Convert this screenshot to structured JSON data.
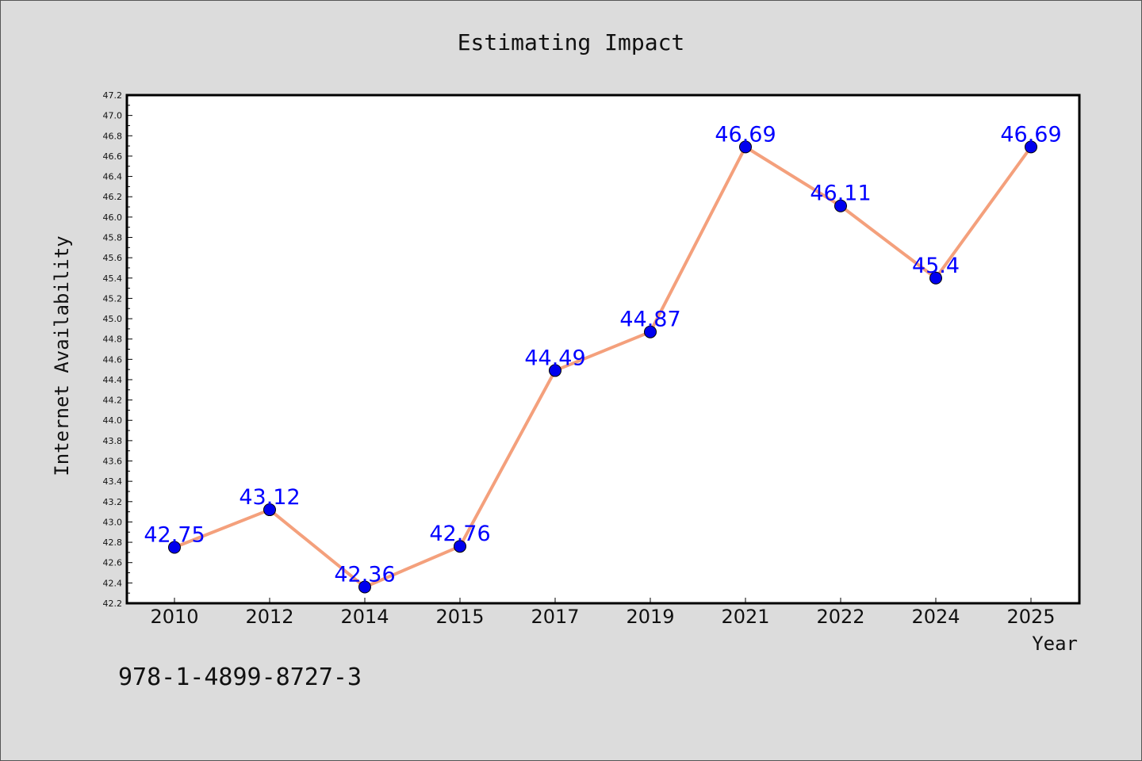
{
  "chart_data": {
    "type": "line",
    "title": "Estimating Impact",
    "xlabel": "Year",
    "ylabel": "Internet Availability",
    "categories": [
      "2010",
      "2012",
      "2014",
      "2015",
      "2017",
      "2019",
      "2021",
      "2022",
      "2024",
      "2025"
    ],
    "series": [
      {
        "values": [
          42.75,
          43.12,
          42.36,
          42.76,
          44.49,
          44.87,
          46.69,
          46.11,
          45.4,
          46.69
        ],
        "labels": [
          "42.75",
          "43.12",
          "42.36",
          "42.76",
          "44.49",
          "44.87",
          "46.69",
          "46.11",
          "45.4",
          "46.69"
        ],
        "line_color": "#f4a07c",
        "marker_color": "#0000ee",
        "label_color": "#0000ff"
      }
    ],
    "ylim": [
      42.2,
      47.2
    ],
    "yticks": [
      "42.2",
      "42.4",
      "42.6",
      "42.8",
      "43.0",
      "43.2",
      "43.4",
      "43.6",
      "43.8",
      "44.0",
      "44.2",
      "44.4",
      "44.6",
      "44.8",
      "45.0",
      "45.2",
      "45.4",
      "45.6",
      "45.8",
      "46.0",
      "46.2",
      "46.4",
      "46.6",
      "46.8",
      "47.0",
      "47.2"
    ],
    "grid": false,
    "legend": "none",
    "annotation": "978-1-4899-8727-3"
  }
}
